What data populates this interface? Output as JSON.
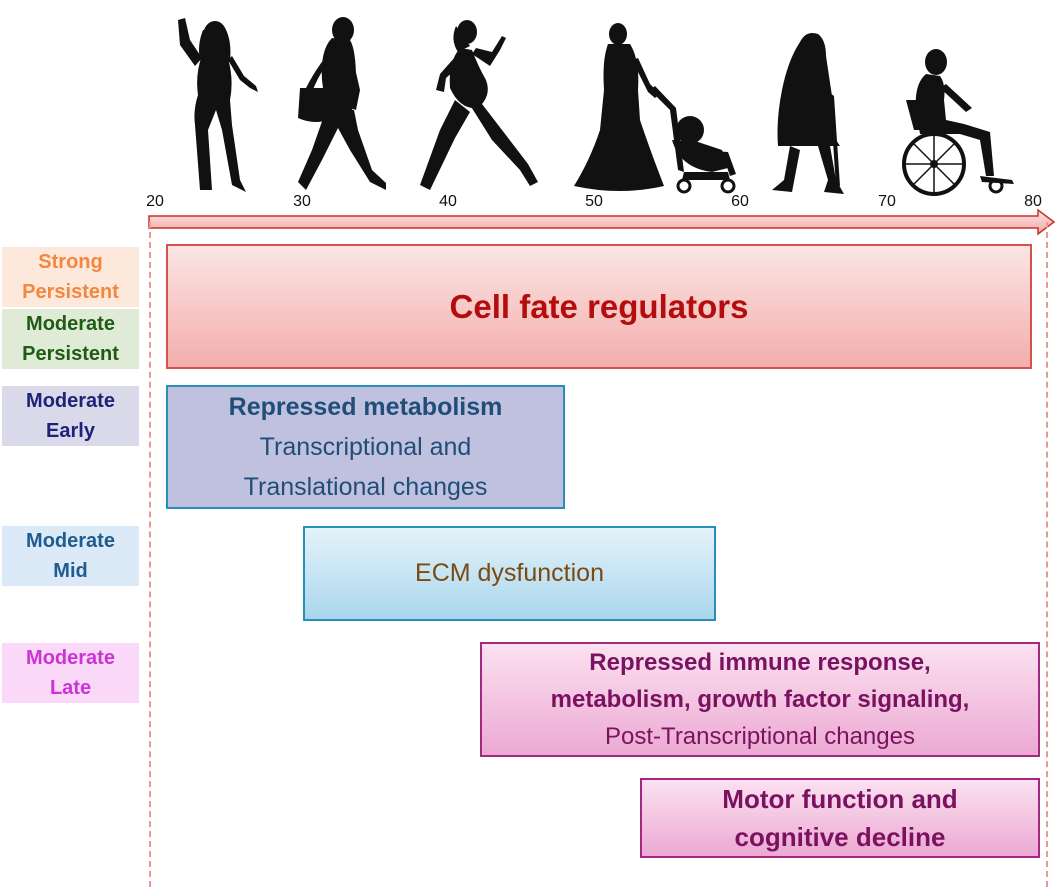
{
  "axis": {
    "ticks": [
      "20",
      "30",
      "40",
      "50",
      "60",
      "70",
      "80"
    ]
  },
  "silhouettes": [
    {
      "name": "young-woman-posing-icon"
    },
    {
      "name": "woman-with-handbag-walking-icon"
    },
    {
      "name": "pregnant-woman-walking-icon"
    },
    {
      "name": "woman-pushing-stroller-icon"
    },
    {
      "name": "elderly-woman-with-cane-icon"
    },
    {
      "name": "person-in-wheelchair-icon"
    }
  ],
  "categories": [
    {
      "key": "strong-persistent",
      "lines": [
        "Strong",
        "Persistent"
      ],
      "color": "#f4873f",
      "bg": "#fde9db"
    },
    {
      "key": "moderate-persistent",
      "lines": [
        "Moderate",
        "Persistent"
      ],
      "color": "#1f5c14",
      "bg": "#dfead7"
    },
    {
      "key": "moderate-early",
      "lines": [
        "Moderate",
        "Early"
      ],
      "color": "#1f2378",
      "bg": "#d9d9ea"
    },
    {
      "key": "moderate-mid",
      "lines": [
        "Moderate",
        "Mid"
      ],
      "color": "#1f5c8f",
      "bg": "#dce9f7"
    },
    {
      "key": "moderate-late",
      "lines": [
        "Moderate",
        "Late"
      ],
      "color": "#cc33d6",
      "bg": "#f9d9f7"
    }
  ],
  "bars": {
    "cell_fate": {
      "lines": [
        "Cell fate regulators"
      ]
    },
    "metabolism": {
      "lines": [
        "Repressed metabolism",
        "Transcriptional and",
        "Translational changes"
      ]
    },
    "ecm": {
      "lines": [
        "ECM dysfunction"
      ]
    },
    "immune": {
      "lines": [
        "Repressed immune response,",
        "metabolism, growth factor signaling,",
        "Post-Transcriptional changes"
      ]
    },
    "motor": {
      "lines": [
        "Motor function and",
        "cognitive decline"
      ]
    }
  },
  "colors": {
    "axis_red": "#c9302c",
    "guide_pink": "#e79a96",
    "cell_fate_text": "#b30d0d",
    "metabolism_text": "#1f4e79",
    "ecm_text": "#7a4a12",
    "immune_text": "#7a1260",
    "motor_text": "#7a1260"
  }
}
